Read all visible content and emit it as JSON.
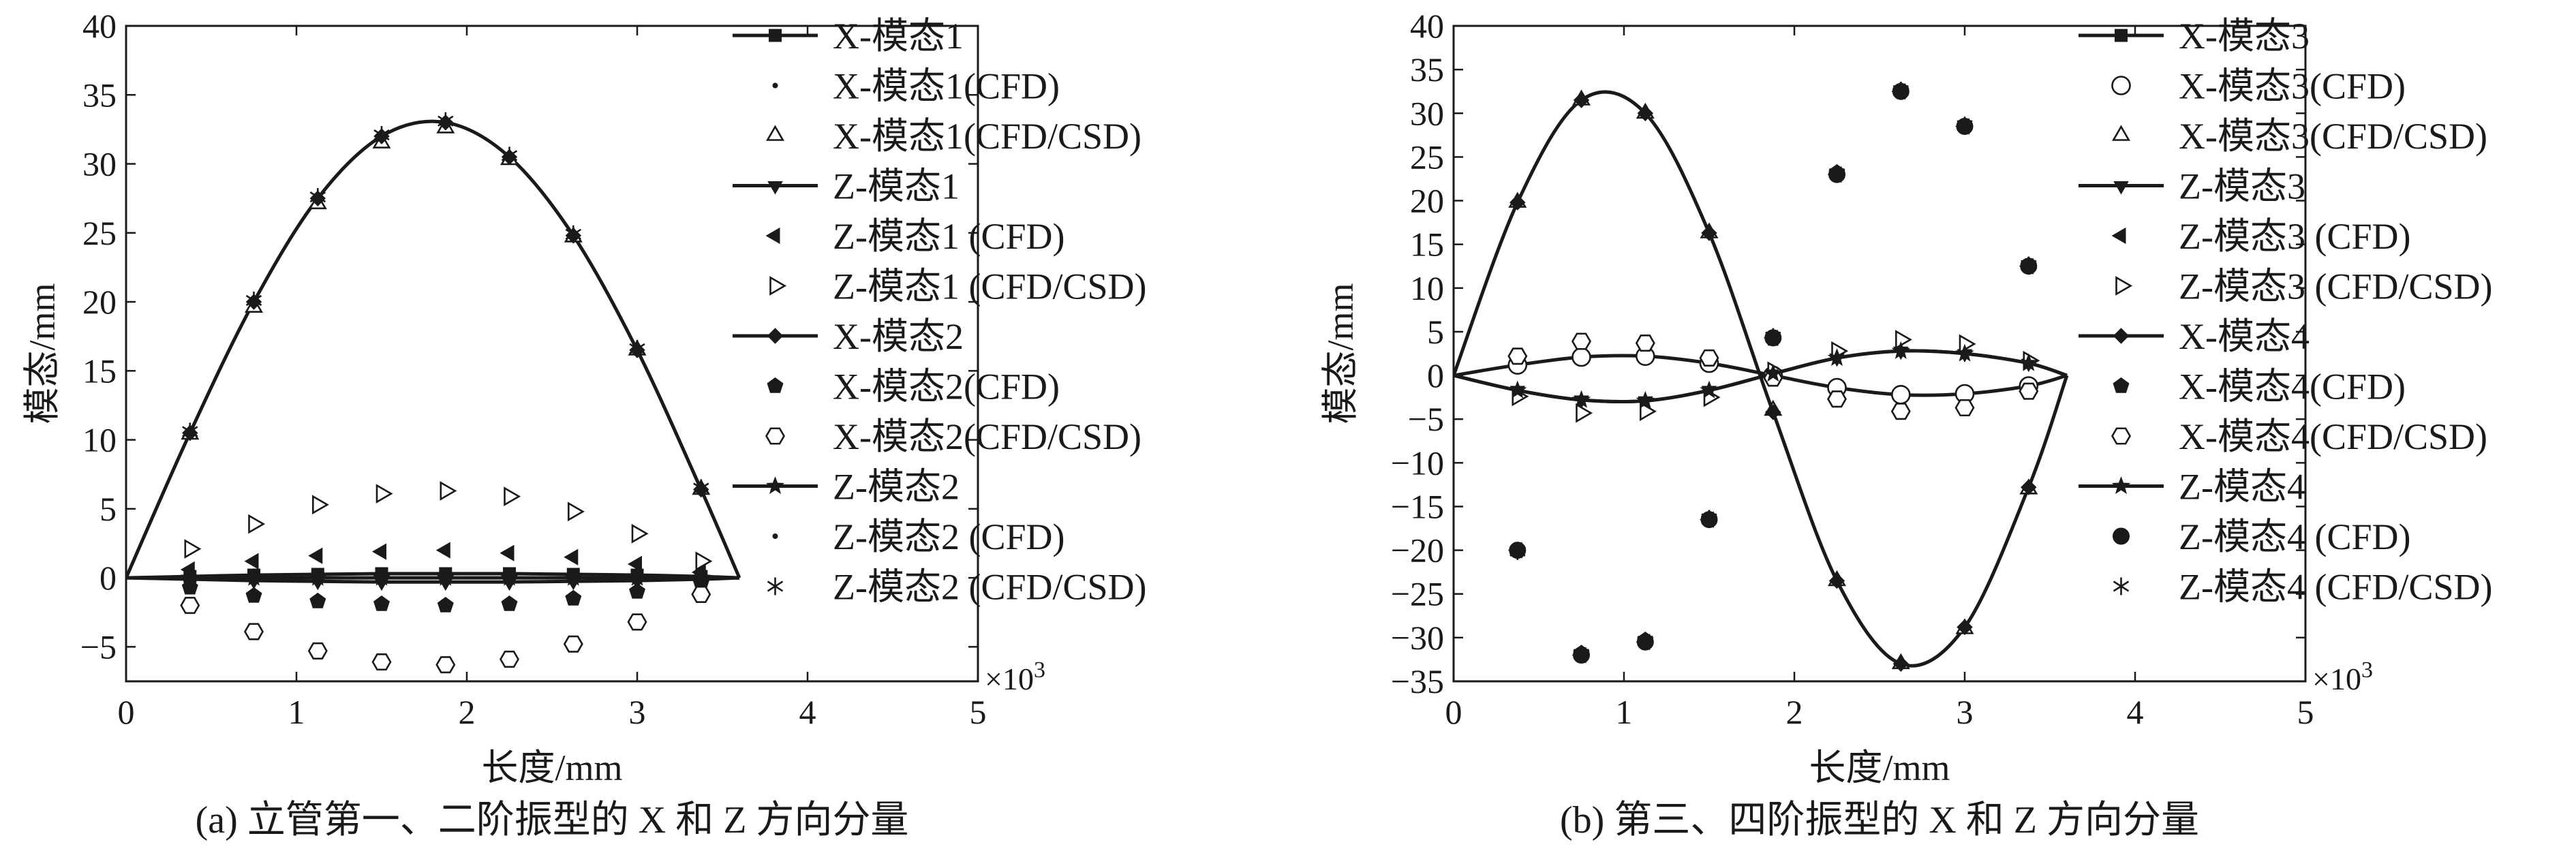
{
  "colors": {
    "ink": "#1a1a1a",
    "background": "#ffffff"
  },
  "chart_data": [
    {
      "type": "line",
      "caption": "(a) 立管第一、二阶振型的 X 和 Z 方向分量",
      "xlabel": "长度/mm",
      "ylabel": "模态/mm",
      "x_multiplier": "×10",
      "x_multiplier_exp": "3",
      "xlim": [
        0,
        5
      ],
      "ylim": [
        -7.5,
        40
      ],
      "xticks": [
        "0",
        "1",
        "2",
        "3",
        "4",
        "5"
      ],
      "yticks": [
        "−5",
        "0",
        "5",
        "10",
        "15",
        "20",
        "25",
        "30",
        "35",
        "40"
      ],
      "grid": false,
      "legend_position": "right",
      "x": [
        0,
        0.375,
        0.75,
        1.125,
        1.5,
        1.875,
        2.25,
        2.625,
        3.0,
        3.375,
        3.6
      ],
      "series": [
        {
          "name": "X-模态1",
          "kind": "line",
          "marker": "square",
          "values": [
            0,
            0.1,
            0.2,
            0.25,
            0.3,
            0.3,
            0.3,
            0.25,
            0.2,
            0.1,
            0
          ]
        },
        {
          "name": "X-模态1(CFD)",
          "kind": "marker",
          "marker": "dot",
          "values": [
            0,
            0.1,
            0.2,
            0.25,
            0.3,
            0.3,
            0.3,
            0.25,
            0.2,
            0.1,
            0
          ]
        },
        {
          "name": "X-模态1(CFD/CSD)",
          "kind": "marker",
          "marker": "triangle-open",
          "values": [
            0,
            10.4,
            19.6,
            27.1,
            31.5,
            32.6,
            30.3,
            24.7,
            16.5,
            6.4,
            0
          ]
        },
        {
          "name": "Z-模态1",
          "kind": "line",
          "marker": "triangle-down",
          "values": [
            0,
            -0.1,
            -0.2,
            -0.25,
            -0.3,
            -0.3,
            -0.3,
            -0.25,
            -0.2,
            -0.1,
            0
          ]
        },
        {
          "name": "Z-模态1 (CFD)",
          "kind": "marker",
          "marker": "triangle-left",
          "values": [
            0,
            0.6,
            1.2,
            1.6,
            1.9,
            2.0,
            1.8,
            1.5,
            1.0,
            0.4,
            0
          ]
        },
        {
          "name": "Z-模态1 (CFD/CSD)",
          "kind": "marker",
          "marker": "triangle-right-open",
          "values": [
            0,
            2.1,
            3.9,
            5.3,
            6.1,
            6.3,
            5.9,
            4.8,
            3.2,
            1.2,
            0
          ]
        },
        {
          "name": "X-模态2",
          "kind": "line",
          "marker": "diamond",
          "values": [
            0,
            10.5,
            20.0,
            27.5,
            32.0,
            33.0,
            30.5,
            24.8,
            16.5,
            6.4,
            0
          ]
        },
        {
          "name": "X-模态2(CFD)",
          "kind": "marker",
          "marker": "pentagon",
          "values": [
            0,
            -0.7,
            -1.3,
            -1.7,
            -1.9,
            -2.0,
            -1.9,
            -1.5,
            -1.0,
            -0.4,
            0
          ]
        },
        {
          "name": "X-模态2(CFD/CSD)",
          "kind": "marker",
          "marker": "hexagon-open",
          "values": [
            0,
            -2.0,
            -3.9,
            -5.3,
            -6.1,
            -6.3,
            -5.9,
            -4.8,
            -3.2,
            -1.2,
            0
          ]
        },
        {
          "name": "Z-模态2",
          "kind": "line",
          "marker": "star",
          "values": [
            0,
            0,
            0,
            0,
            0,
            0,
            0,
            0,
            0,
            0,
            0
          ]
        },
        {
          "name": "Z-模态2 (CFD)",
          "kind": "marker",
          "marker": "dot",
          "values": [
            0,
            0,
            0,
            0,
            0,
            0,
            0,
            0,
            0,
            0,
            0
          ]
        },
        {
          "name": "Z-模态2 (CFD/CSD)",
          "kind": "marker",
          "marker": "asterisk",
          "values": [
            0,
            10.6,
            20.1,
            27.6,
            32.1,
            33.1,
            30.6,
            24.9,
            16.6,
            6.5,
            0
          ]
        }
      ]
    },
    {
      "type": "line",
      "caption": "(b) 第三、四阶振型的 X 和 Z 方向分量",
      "xlabel": "长度/mm",
      "ylabel": "模态/mm",
      "x_multiplier": "×10",
      "x_multiplier_exp": "3",
      "xlim": [
        0,
        5
      ],
      "ylim": [
        -35,
        40
      ],
      "xticks": [
        "0",
        "1",
        "2",
        "3",
        "4",
        "5"
      ],
      "yticks": [
        "−35",
        "−30",
        "−25",
        "−20",
        "−15",
        "−10",
        "−5",
        "0",
        "5",
        "10",
        "15",
        "20",
        "25",
        "30",
        "35",
        "40"
      ],
      "grid": false,
      "legend_position": "right",
      "x": [
        0,
        0.375,
        0.75,
        1.125,
        1.5,
        1.875,
        2.25,
        2.625,
        3.0,
        3.375,
        3.6
      ],
      "series": [
        {
          "name": "X-模态3",
          "kind": "line",
          "marker": "square",
          "values": [
            0,
            1.2,
            2.1,
            2.2,
            1.4,
            0,
            -1.4,
            -2.2,
            -2.1,
            -1.2,
            0
          ]
        },
        {
          "name": "X-模态3(CFD)",
          "kind": "marker",
          "marker": "circle-open",
          "values": [
            0,
            1.2,
            2.1,
            2.2,
            1.4,
            0,
            -1.4,
            -2.2,
            -2.1,
            -1.2,
            0
          ]
        },
        {
          "name": "X-模态3(CFD/CSD)",
          "kind": "marker",
          "marker": "triangle-open",
          "values": [
            0,
            19.8,
            31.5,
            30.0,
            16.3,
            -4.0,
            -23.5,
            -33.0,
            -29.0,
            -13.0,
            0
          ]
        },
        {
          "name": "Z-模态3",
          "kind": "line",
          "marker": "triangle-down",
          "values": [
            0,
            -1.7,
            -2.8,
            -2.9,
            -1.7,
            0.2,
            2.0,
            2.8,
            2.5,
            1.4,
            0
          ]
        },
        {
          "name": "Z-模态3 (CFD)",
          "kind": "marker",
          "marker": "triangle-left",
          "values": [
            0,
            -20.0,
            -32.0,
            -30.5,
            -16.5,
            4.3,
            23.0,
            32.5,
            28.5,
            12.5,
            0
          ]
        },
        {
          "name": "Z-模态3 (CFD/CSD)",
          "kind": "marker",
          "marker": "triangle-right-open",
          "values": [
            0,
            -2.4,
            -4.3,
            -4.1,
            -2.5,
            0.5,
            2.8,
            4.1,
            3.6,
            1.7,
            0
          ]
        },
        {
          "name": "X-模态4",
          "kind": "line",
          "marker": "diamond",
          "values": [
            0,
            19.8,
            31.5,
            30.0,
            16.3,
            -4.2,
            -23.5,
            -33.0,
            -28.8,
            -12.8,
            0
          ]
        },
        {
          "name": "X-模态4(CFD)",
          "kind": "marker",
          "marker": "pentagon",
          "values": [
            0,
            -20.0,
            -31.8,
            -30.3,
            -16.4,
            4.2,
            23.2,
            32.6,
            28.5,
            12.6,
            0
          ]
        },
        {
          "name": "X-模态4(CFD/CSD)",
          "kind": "marker",
          "marker": "hexagon-open",
          "values": [
            0,
            2.2,
            3.9,
            3.7,
            2.0,
            -0.3,
            -2.7,
            -4.1,
            -3.7,
            -1.8,
            0
          ]
        },
        {
          "name": "Z-模态4",
          "kind": "line",
          "marker": "star",
          "values": [
            0,
            -1.7,
            -2.8,
            -2.9,
            -1.7,
            0.2,
            2.0,
            2.8,
            2.5,
            1.4,
            0
          ]
        },
        {
          "name": "Z-模态4 (CFD)",
          "kind": "marker",
          "marker": "dot-large",
          "values": [
            0,
            -20.0,
            -32.0,
            -30.5,
            -16.5,
            4.3,
            23.0,
            32.5,
            28.5,
            12.5,
            0
          ]
        },
        {
          "name": "Z-模态4 (CFD/CSD)",
          "kind": "marker",
          "marker": "asterisk",
          "values": [
            0,
            -20.1,
            -31.9,
            -30.4,
            -16.4,
            4.4,
            23.1,
            32.6,
            28.6,
            12.6,
            0
          ]
        }
      ]
    }
  ]
}
